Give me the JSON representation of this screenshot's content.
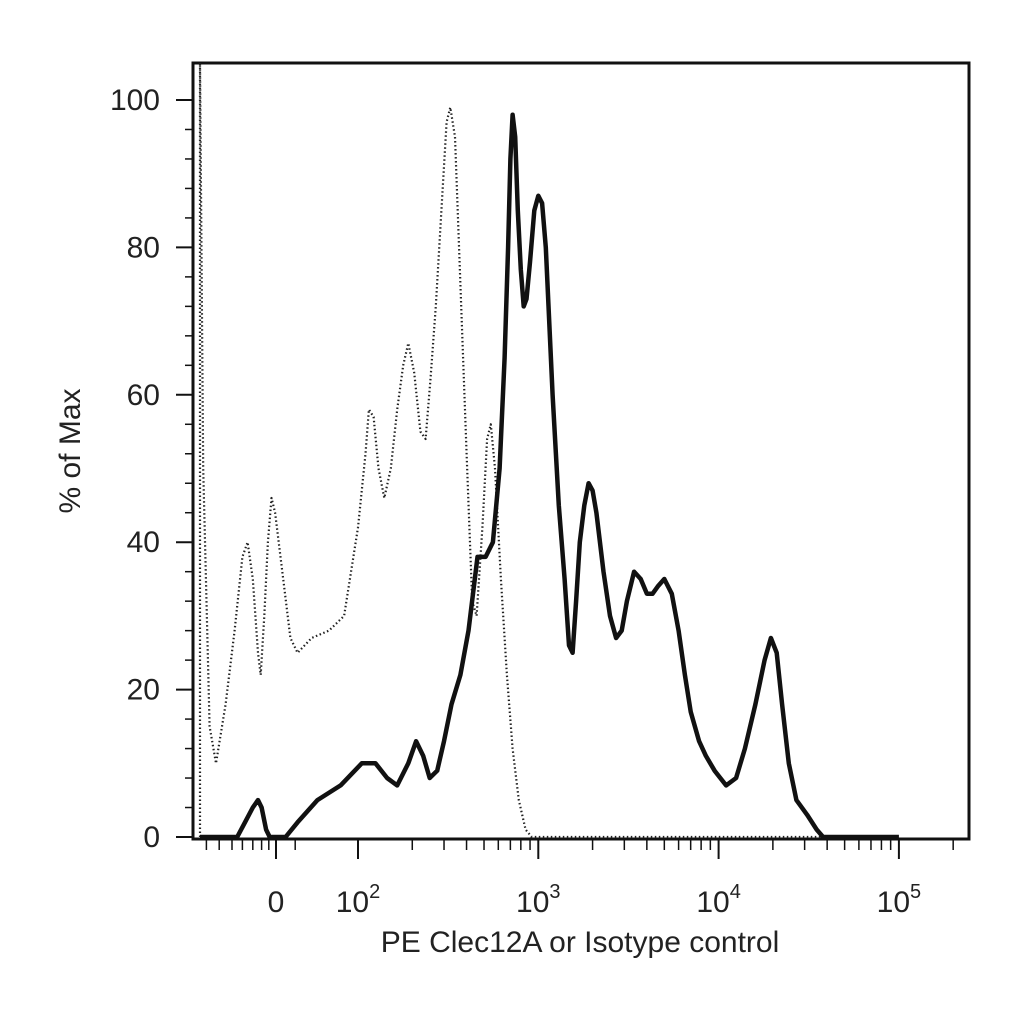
{
  "chart_data": {
    "type": "area",
    "xlabel": "PE Clec12A or Isotype control",
    "ylabel": "% of Max",
    "x_scale": "biexponential",
    "ylim": [
      0,
      105
    ],
    "y_ticks": [
      0,
      20,
      40,
      60,
      80,
      100
    ],
    "x_tick_labels": [
      {
        "label": "0",
        "value": 0
      },
      {
        "label": "10",
        "sup": "2",
        "value": 100
      },
      {
        "label": "10",
        "sup": "3",
        "value": 1000
      },
      {
        "label": "10",
        "sup": "4",
        "value": 10000
      },
      {
        "label": "10",
        "sup": "5",
        "value": 100000
      }
    ],
    "grid": false,
    "legend": "none",
    "series": [
      {
        "style": "dotted",
        "color": "#222222",
        "points": [
          [
            -300,
            0
          ],
          [
            -300,
            105
          ],
          [
            -290,
            50
          ],
          [
            -270,
            15
          ],
          [
            -250,
            10
          ],
          [
            -220,
            18
          ],
          [
            -190,
            28
          ],
          [
            -160,
            38
          ],
          [
            -140,
            40
          ],
          [
            -120,
            35
          ],
          [
            -100,
            25
          ],
          [
            -85,
            22
          ],
          [
            -65,
            30
          ],
          [
            -45,
            40
          ],
          [
            -25,
            46
          ],
          [
            -5,
            44
          ],
          [
            15,
            35
          ],
          [
            30,
            27
          ],
          [
            45,
            25
          ],
          [
            60,
            27
          ],
          [
            75,
            28
          ],
          [
            88,
            30
          ],
          [
            100,
            42
          ],
          [
            110,
            52
          ],
          [
            115,
            58
          ],
          [
            122,
            57
          ],
          [
            130,
            50
          ],
          [
            140,
            46
          ],
          [
            152,
            50
          ],
          [
            165,
            58
          ],
          [
            178,
            64
          ],
          [
            190,
            67
          ],
          [
            205,
            63
          ],
          [
            222,
            55
          ],
          [
            237,
            54
          ],
          [
            252,
            62
          ],
          [
            270,
            72
          ],
          [
            290,
            85
          ],
          [
            310,
            97
          ],
          [
            325,
            99
          ],
          [
            345,
            95
          ],
          [
            370,
            75
          ],
          [
            400,
            52
          ],
          [
            430,
            32
          ],
          [
            455,
            30
          ],
          [
            490,
            42
          ],
          [
            520,
            54
          ],
          [
            545,
            56
          ],
          [
            575,
            50
          ],
          [
            620,
            35
          ],
          [
            670,
            22
          ],
          [
            720,
            12
          ],
          [
            780,
            5
          ],
          [
            850,
            1
          ],
          [
            920,
            0
          ],
          [
            100000,
            0
          ]
        ]
      },
      {
        "style": "solid",
        "color": "#111111",
        "points": [
          [
            -300,
            0
          ],
          [
            -180,
            0
          ],
          [
            -150,
            2
          ],
          [
            -120,
            4
          ],
          [
            -100,
            5
          ],
          [
            -80,
            4
          ],
          [
            -55,
            1
          ],
          [
            -35,
            0
          ],
          [
            -5,
            0
          ],
          [
            20,
            0
          ],
          [
            45,
            2
          ],
          [
            65,
            5
          ],
          [
            85,
            7
          ],
          [
            105,
            10
          ],
          [
            125,
            10
          ],
          [
            145,
            8
          ],
          [
            165,
            7
          ],
          [
            190,
            10
          ],
          [
            210,
            13
          ],
          [
            230,
            11
          ],
          [
            250,
            8
          ],
          [
            275,
            9
          ],
          [
            300,
            13
          ],
          [
            330,
            18
          ],
          [
            370,
            22
          ],
          [
            410,
            28
          ],
          [
            460,
            38
          ],
          [
            510,
            38
          ],
          [
            560,
            40
          ],
          [
            610,
            50
          ],
          [
            650,
            65
          ],
          [
            680,
            80
          ],
          [
            700,
            92
          ],
          [
            720,
            98
          ],
          [
            745,
            95
          ],
          [
            770,
            85
          ],
          [
            800,
            77
          ],
          [
            830,
            72
          ],
          [
            860,
            73
          ],
          [
            900,
            78
          ],
          [
            950,
            85
          ],
          [
            1000,
            87
          ],
          [
            1050,
            86
          ],
          [
            1100,
            80
          ],
          [
            1200,
            60
          ],
          [
            1300,
            45
          ],
          [
            1400,
            35
          ],
          [
            1480,
            26
          ],
          [
            1550,
            25
          ],
          [
            1620,
            32
          ],
          [
            1700,
            40
          ],
          [
            1800,
            45
          ],
          [
            1900,
            48
          ],
          [
            2000,
            47
          ],
          [
            2100,
            44
          ],
          [
            2300,
            36
          ],
          [
            2500,
            30
          ],
          [
            2700,
            27
          ],
          [
            2900,
            28
          ],
          [
            3100,
            32
          ],
          [
            3400,
            36
          ],
          [
            3700,
            35
          ],
          [
            4000,
            33
          ],
          [
            4300,
            33
          ],
          [
            4600,
            34
          ],
          [
            5000,
            35
          ],
          [
            5500,
            33
          ],
          [
            6000,
            28
          ],
          [
            6500,
            22
          ],
          [
            7000,
            17
          ],
          [
            7800,
            13
          ],
          [
            8500,
            11
          ],
          [
            9500,
            9
          ],
          [
            11000,
            7
          ],
          [
            12500,
            8
          ],
          [
            14000,
            12
          ],
          [
            16000,
            18
          ],
          [
            18000,
            24
          ],
          [
            19500,
            27
          ],
          [
            21000,
            25
          ],
          [
            22500,
            18
          ],
          [
            24500,
            10
          ],
          [
            27000,
            5
          ],
          [
            31000,
            3
          ],
          [
            35000,
            1
          ],
          [
            38000,
            0
          ],
          [
            100000,
            0
          ]
        ]
      }
    ]
  }
}
